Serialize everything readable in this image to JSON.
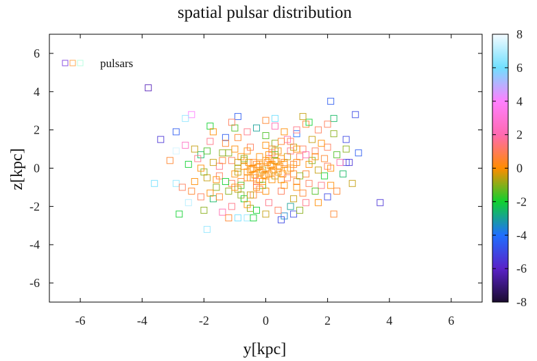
{
  "chart_data": {
    "type": "scatter",
    "title": "spatial pulsar distribution",
    "xlabel": "y[kpc]",
    "ylabel": "z[kpc]",
    "xlim": [
      -7,
      7
    ],
    "ylim": [
      -7,
      7
    ],
    "x_ticks": [
      "-6",
      "-4",
      "-2",
      "0",
      "2",
      "4",
      "6"
    ],
    "y_ticks": [
      "-6",
      "-4",
      "-2",
      "0",
      "2",
      "4",
      "6"
    ],
    "colorbar": {
      "range": [
        -8,
        8
      ],
      "ticks": [
        "-8",
        "-6",
        "-4",
        "-2",
        "0",
        "2",
        "4",
        "6",
        "8"
      ],
      "stops": [
        {
          "v": -8,
          "color": "#1a0b2e"
        },
        {
          "v": -6,
          "color": "#5a22c8"
        },
        {
          "v": -4,
          "color": "#1f6fff"
        },
        {
          "v": -2,
          "color": "#10d030"
        },
        {
          "v": 0,
          "color": "#ff8c00"
        },
        {
          "v": 2,
          "color": "#ff6ab0"
        },
        {
          "v": 4,
          "color": "#ff80ff"
        },
        {
          "v": 6,
          "color": "#70e0ff"
        },
        {
          "v": 8,
          "color": "#f4fbff"
        }
      ]
    },
    "legend": {
      "label": "pulsars",
      "position": "top-left",
      "sample_colors": [
        "#8a4fe0",
        "#ffaa55",
        "#b8ffe0"
      ]
    },
    "grid": false,
    "points": [
      [
        -3.8,
        4.2,
        -6.2
      ],
      [
        -2.4,
        2.8,
        4.0
      ],
      [
        2.1,
        3.5,
        -4.5
      ],
      [
        2.9,
        2.8,
        -5.0
      ],
      [
        -0.9,
        2.7,
        -4.5
      ],
      [
        0.3,
        2.6,
        6.0
      ],
      [
        -2.6,
        2.6,
        6.5
      ],
      [
        -3.4,
        1.5,
        -5.5
      ],
      [
        -2.9,
        1.9,
        -4.5
      ],
      [
        -2.9,
        0.9,
        7.5
      ],
      [
        2.6,
        1.5,
        -5.0
      ],
      [
        3.0,
        0.8,
        -4.5
      ],
      [
        2.6,
        0.3,
        -5.0
      ],
      [
        2.7,
        0.3,
        -5.5
      ],
      [
        -3.6,
        -0.8,
        6.0
      ],
      [
        -2.9,
        -0.8,
        6.5
      ],
      [
        -2.5,
        -1.8,
        7.0
      ],
      [
        -2.8,
        -2.4,
        -2.0
      ],
      [
        -1.9,
        -3.2,
        6.5
      ],
      [
        -0.9,
        -2.6,
        6.0
      ],
      [
        -0.6,
        -2.6,
        6.5
      ],
      [
        0.5,
        -2.7,
        -5.0
      ],
      [
        0.9,
        -2.4,
        -5.0
      ],
      [
        0.6,
        -2.5,
        -3.5
      ],
      [
        3.7,
        -1.8,
        -5.5
      ],
      [
        2.0,
        -1.5,
        -5.0
      ],
      [
        2.2,
        -2.4,
        0.5
      ],
      [
        -0.4,
        -2.6,
        -2.0
      ],
      [
        -1.7,
        -1.6,
        -2.5
      ],
      [
        1.3,
        -1.8,
        1.5
      ],
      [
        2.2,
        2.6,
        -2.5
      ],
      [
        1.3,
        2.3,
        0.5
      ],
      [
        -1.8,
        2.2,
        -2.0
      ],
      [
        -0.6,
        1.9,
        1.5
      ],
      [
        -2.1,
        0.7,
        -2.5
      ],
      [
        -2.4,
        -1.2,
        0.5
      ],
      [
        1.7,
        2.0,
        1.0
      ],
      [
        2.0,
        1.1,
        1.0
      ],
      [
        1.9,
        -0.4,
        -2.0
      ],
      [
        -1.1,
        -2.0,
        1.5
      ],
      [
        -0.3,
        2.1,
        -3.0
      ],
      [
        1.0,
        1.8,
        -4.0
      ],
      [
        -1.3,
        1.6,
        -4.5
      ],
      [
        0.8,
        -2.0,
        -3.0
      ],
      [
        -0.8,
        0.6,
        0.0
      ],
      [
        -0.4,
        -0.5,
        0.5
      ],
      [
        0.3,
        0.4,
        -0.5
      ],
      [
        0.1,
        -0.3,
        0.0
      ],
      [
        -0.2,
        0.1,
        0.0
      ],
      [
        0.0,
        0.0,
        0.5
      ],
      [
        -0.1,
        -0.1,
        -0.5
      ],
      [
        0.2,
        0.1,
        0.0
      ],
      [
        -0.3,
        0.2,
        0.5
      ],
      [
        0.4,
        -0.2,
        0.0
      ],
      [
        -0.5,
        -0.1,
        0.0
      ],
      [
        0.1,
        0.5,
        0.5
      ],
      [
        -0.2,
        -0.6,
        0.0
      ],
      [
        0.6,
        0.3,
        0.5
      ],
      [
        -0.7,
        0.4,
        -0.5
      ],
      [
        0.5,
        -0.6,
        0.0
      ],
      [
        -0.6,
        -0.5,
        0.5
      ],
      [
        0.8,
        0.0,
        0.0
      ],
      [
        -0.9,
        0.0,
        -1.0
      ],
      [
        0.2,
        0.8,
        1.5
      ],
      [
        -0.1,
        -0.9,
        -1.5
      ],
      [
        1.1,
        0.6,
        1.0
      ],
      [
        -1.2,
        0.8,
        -1.0
      ],
      [
        1.0,
        -0.7,
        0.5
      ],
      [
        -1.1,
        -0.8,
        1.0
      ],
      [
        1.4,
        0.2,
        0.0
      ],
      [
        -1.5,
        0.1,
        1.5
      ],
      [
        0.3,
        1.3,
        -1.0
      ],
      [
        -0.4,
        -1.4,
        0.5
      ],
      [
        1.6,
        0.9,
        1.0
      ],
      [
        -1.6,
        -1.0,
        -1.0
      ],
      [
        1.8,
        -0.9,
        1.5
      ],
      [
        -1.9,
        0.9,
        -1.5
      ],
      [
        0.7,
        1.5,
        2.0
      ],
      [
        -0.7,
        -1.6,
        -2.0
      ],
      [
        2.0,
        0.1,
        1.0
      ],
      [
        -2.0,
        -0.2,
        -1.0
      ],
      [
        1.2,
        -1.3,
        0.5
      ],
      [
        -1.3,
        1.3,
        0.5
      ],
      [
        0.0,
        1.7,
        -1.5
      ],
      [
        0.1,
        -1.8,
        1.5
      ],
      [
        2.3,
        0.7,
        -1.5
      ],
      [
        -2.2,
        0.5,
        1.5
      ],
      [
        1.5,
        1.5,
        -0.5
      ],
      [
        -1.5,
        -1.5,
        0.5
      ],
      [
        2.1,
        -0.9,
        0.0
      ],
      [
        -2.3,
        -0.7,
        0.0
      ],
      [
        0.9,
        1.1,
        -0.5
      ],
      [
        -0.9,
        -1.1,
        -0.5
      ],
      [
        1.3,
        -0.3,
        0.5
      ],
      [
        -1.4,
        0.4,
        0.5
      ],
      [
        0.5,
        -1.2,
        1.0
      ],
      [
        -0.5,
        1.1,
        1.0
      ],
      [
        1.7,
        -0.1,
        -0.5
      ],
      [
        -1.7,
        0.3,
        -0.5
      ],
      [
        0.4,
        0.9,
        0.0
      ],
      [
        -0.3,
        -1.0,
        0.0
      ],
      [
        1.0,
        0.3,
        0.0
      ],
      [
        -1.0,
        -0.3,
        0.0
      ],
      [
        0.6,
        -0.9,
        0.0
      ],
      [
        -0.6,
        0.9,
        0.0
      ],
      [
        1.2,
        1.0,
        1.0
      ],
      [
        -1.2,
        -1.2,
        -1.0
      ],
      [
        2.4,
        0.3,
        2.0
      ],
      [
        -2.5,
        0.2,
        -2.0
      ],
      [
        0.2,
        1.0,
        0.5
      ],
      [
        -0.2,
        -1.1,
        0.5
      ],
      [
        0.7,
        0.6,
        -0.5
      ],
      [
        -0.8,
        -0.7,
        0.5
      ],
      [
        0.3,
        -0.4,
        -0.5
      ],
      [
        -0.4,
        0.3,
        0.5
      ],
      [
        0.15,
        0.15,
        0.0
      ],
      [
        -0.15,
        -0.2,
        0.0
      ],
      [
        0.25,
        -0.1,
        0.0
      ],
      [
        -0.25,
        0.05,
        0.0
      ],
      [
        0.05,
        0.3,
        0.0
      ],
      [
        -0.05,
        -0.35,
        0.0
      ],
      [
        0.45,
        0.1,
        0.0
      ],
      [
        -0.45,
        -0.05,
        0.0
      ],
      [
        0.35,
        0.35,
        0.0
      ],
      [
        -0.35,
        -0.35,
        0.0
      ],
      [
        0.55,
        -0.3,
        0.0
      ],
      [
        -0.55,
        0.3,
        0.0
      ],
      [
        1.6,
        -1.2,
        -1.5
      ],
      [
        -1.8,
        1.4,
        1.5
      ],
      [
        2.2,
        1.8,
        -1.0
      ],
      [
        -2.1,
        -1.5,
        1.0
      ],
      [
        1.0,
        2.0,
        1.5
      ],
      [
        -1.0,
        2.1,
        -1.5
      ],
      [
        0.4,
        -2.2,
        1.0
      ],
      [
        -0.5,
        -2.1,
        -1.0
      ],
      [
        2.5,
        -0.3,
        -2.5
      ],
      [
        -2.6,
        1.2,
        2.5
      ],
      [
        1.4,
        2.4,
        -2.0
      ],
      [
        -1.4,
        -2.3,
        2.0
      ],
      [
        0.9,
        -1.6,
        -0.5
      ],
      [
        -0.9,
        1.6,
        0.5
      ],
      [
        1.9,
        0.5,
        0.5
      ],
      [
        -1.9,
        -0.5,
        -0.5
      ],
      [
        0.6,
        1.9,
        0.0
      ],
      [
        -0.6,
        -1.9,
        0.0
      ],
      [
        2.6,
        1.0,
        -1.0
      ],
      [
        -2.7,
        -1.0,
        1.0
      ],
      [
        1.1,
        -2.2,
        -1.0
      ],
      [
        -1.1,
        2.4,
        1.0
      ],
      [
        0.0,
        2.5,
        0.5
      ],
      [
        0.0,
        -2.4,
        -0.5
      ],
      [
        1.8,
        1.3,
        0.0
      ],
      [
        -1.8,
        -1.3,
        0.0
      ],
      [
        2.3,
        -1.2,
        0.5
      ],
      [
        -2.3,
        1.0,
        -0.5
      ],
      [
        0.8,
        0.9,
        1.5
      ],
      [
        -0.8,
        -0.9,
        -1.5
      ],
      [
        1.5,
        0.4,
        -1.0
      ],
      [
        -1.5,
        -0.4,
        1.0
      ],
      [
        0.5,
        1.4,
        0.5
      ],
      [
        -0.5,
        -1.4,
        -0.5
      ],
      [
        1.3,
        0.7,
        2.0
      ],
      [
        -1.3,
        -0.7,
        -2.0
      ],
      [
        0.7,
        -0.5,
        1.0
      ],
      [
        -0.7,
        0.5,
        -1.0
      ],
      [
        1.1,
        -0.4,
        -1.0
      ],
      [
        -1.1,
        0.4,
        1.0
      ],
      [
        0.3,
        0.7,
        -1.5
      ],
      [
        -0.3,
        -0.7,
        1.5
      ],
      [
        0.9,
        0.2,
        0.5
      ],
      [
        -0.9,
        -0.2,
        -0.5
      ],
      [
        0.5,
        0.5,
        0.0
      ],
      [
        -0.5,
        -0.5,
        0.0
      ],
      [
        0.7,
        -0.1,
        0.0
      ],
      [
        -0.7,
        0.1,
        0.0
      ],
      [
        0.1,
        0.7,
        0.0
      ],
      [
        -0.1,
        -0.7,
        0.0
      ],
      [
        1.6,
        0.6,
        0.0
      ],
      [
        -1.6,
        -0.6,
        0.0
      ],
      [
        2.8,
        -0.8,
        -0.5
      ],
      [
        -3.1,
        0.4,
        0.5
      ],
      [
        1.2,
        2.7,
        -0.5
      ],
      [
        -1.2,
        -2.6,
        0.5
      ],
      [
        2.0,
        2.3,
        1.0
      ],
      [
        -2.0,
        -2.2,
        -1.0
      ],
      [
        0.3,
        2.2,
        2.0
      ],
      [
        -0.3,
        -2.2,
        -2.0
      ],
      [
        1.7,
        -1.8,
        0.0
      ],
      [
        -1.7,
        1.9,
        0.0
      ],
      [
        0.6,
        0.2,
        0.0
      ],
      [
        -0.6,
        -0.2,
        0.0
      ],
      [
        0.2,
        -0.6,
        0.0
      ],
      [
        -0.2,
        0.6,
        0.0
      ],
      [
        0.9,
        -0.3,
        0.5
      ],
      [
        -0.9,
        0.3,
        -0.5
      ],
      [
        0.3,
        0.9,
        -0.5
      ],
      [
        -0.3,
        -0.9,
        0.5
      ],
      [
        1.4,
        -0.8,
        1.0
      ],
      [
        -1.4,
        0.8,
        -1.0
      ],
      [
        0.8,
        1.4,
        1.0
      ],
      [
        -0.8,
        -1.4,
        -1.0
      ],
      [
        2.1,
        0.0,
        0.0
      ],
      [
        -2.1,
        0.0,
        0.0
      ],
      [
        0.0,
        1.2,
        0.0
      ],
      [
        0.0,
        -1.2,
        0.0
      ],
      [
        1.0,
        1.0,
        0.0
      ],
      [
        -1.0,
        -1.0,
        0.0
      ],
      [
        1.0,
        -1.0,
        0.0
      ],
      [
        -1.0,
        1.0,
        0.0
      ],
      [
        0.4,
        0.0,
        0.0
      ],
      [
        -0.4,
        0.0,
        0.0
      ],
      [
        0.0,
        0.4,
        0.0
      ],
      [
        0.0,
        -0.4,
        0.0
      ],
      [
        0.2,
        0.2,
        0.0
      ],
      [
        -0.2,
        -0.2,
        0.0
      ],
      [
        0.2,
        -0.2,
        0.0
      ],
      [
        -0.2,
        0.2,
        0.0
      ]
    ]
  }
}
